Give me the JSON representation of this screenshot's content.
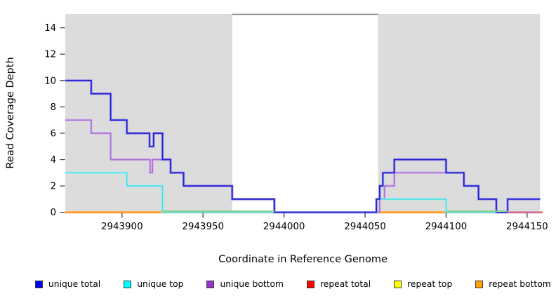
{
  "figure": {
    "xlabel": "Coordinate in Reference Genome",
    "ylabel": "Read Coverage Depth"
  },
  "chart_data": {
    "type": "line",
    "subtype": "step-after coverage depth plot",
    "title": "",
    "xlabel": "Coordinate in Reference Genome",
    "ylabel": "Read Coverage Depth",
    "xlim": [
      2943865,
      2944158
    ],
    "ylim": [
      0,
      15
    ],
    "x_ticks": [
      "2943900",
      "2943950",
      "2944000",
      "2944050",
      "2944100",
      "2944150"
    ],
    "x_tick_values": [
      2943900,
      2943950,
      2944000,
      2944050,
      2944100,
      2944150
    ],
    "y_ticks": [
      "0",
      "2",
      "4",
      "6",
      "8",
      "10",
      "12",
      "14"
    ],
    "y_tick_values": [
      0,
      2,
      4,
      6,
      8,
      10,
      12,
      14
    ],
    "grid": false,
    "legend_position": "bottom",
    "background_regions": [
      {
        "name": "repeat-shading-left",
        "x0": 2943865,
        "x1": 2943968,
        "color": "#dcdcdc"
      },
      {
        "name": "repeat-shading-right",
        "x0": 2944058,
        "x1": 2944158,
        "color": "#dcdcdc"
      }
    ],
    "gap_top_line": {
      "x0": 2943968,
      "x1": 2944058,
      "y": 15.02,
      "color": "#8c8c8c"
    },
    "series": [
      {
        "name": "repeat total",
        "legend_color": "#ff0000",
        "halo": "#e03030",
        "core": "#e03030",
        "render": "single",
        "width": 2,
        "points": [
          [
            2943865,
            0
          ],
          [
            2944159.5,
            0
          ]
        ]
      },
      {
        "name": "repeat top",
        "legend_color": "#ffff00",
        "halo": "#f0f046",
        "core": "#f0f046",
        "render": "single",
        "width": 2,
        "points": [
          [
            2943865,
            0
          ],
          [
            2944159.5,
            0
          ]
        ]
      },
      {
        "name": "repeat bottom",
        "legend_color": "#ffa500",
        "halo": "#ffb25c",
        "core": "#ff9420",
        "render": "halo",
        "width": 2,
        "points": [
          [
            2943865,
            0
          ],
          [
            2944159.5,
            0
          ]
        ]
      },
      {
        "name": "unique bottom",
        "legend_color": "#9932cc",
        "halo": "#d7b5ea",
        "core": "#a873d6",
        "render": "halo",
        "width": 2,
        "points": [
          [
            2943865,
            7
          ],
          [
            2943881,
            6
          ],
          [
            2943893,
            4
          ],
          [
            2943917.3,
            3
          ],
          [
            2943918.8,
            4
          ],
          [
            2943930,
            3
          ],
          [
            2943938,
            2
          ],
          [
            2943968,
            1
          ],
          [
            2943994,
            0
          ],
          [
            2944059,
            1
          ],
          [
            2944062,
            2
          ],
          [
            2944068,
            3
          ],
          [
            2944100,
            3
          ],
          [
            2944111,
            2
          ],
          [
            2944120,
            1
          ],
          [
            2944131,
            0
          ],
          [
            2944158,
            0
          ]
        ]
      },
      {
        "name": "unique top",
        "legend_color": "#00ffff",
        "halo": "#b2f3f3",
        "core": "#45dde2",
        "render": "halo",
        "width": 2,
        "points": [
          [
            2943865,
            3
          ],
          [
            2943903,
            2
          ],
          [
            2943925,
            0
          ],
          [
            2944057,
            1
          ],
          [
            2944100,
            0
          ],
          [
            2944138,
            1
          ],
          [
            2944158,
            1
          ]
        ]
      },
      {
        "name": "unique total",
        "legend_color": "#0000ff",
        "halo": "#908dea",
        "core": "#2320cf",
        "render": "halo",
        "width": 2,
        "points": [
          [
            2943865,
            10
          ],
          [
            2943881,
            9
          ],
          [
            2943893,
            7
          ],
          [
            2943903,
            6
          ],
          [
            2943917,
            5
          ],
          [
            2943919.5,
            6
          ],
          [
            2943925,
            4
          ],
          [
            2943930,
            3
          ],
          [
            2943938,
            2
          ],
          [
            2943968,
            1
          ],
          [
            2943994,
            0
          ],
          [
            2944057,
            1
          ],
          [
            2944059,
            2
          ],
          [
            2944061,
            3
          ],
          [
            2944068,
            4
          ],
          [
            2944100,
            3
          ],
          [
            2944111,
            2
          ],
          [
            2944120,
            1
          ],
          [
            2944131,
            0
          ],
          [
            2944138,
            1
          ],
          [
            2944158,
            1
          ]
        ]
      }
    ],
    "overlay_blend_segments": [
      {
        "name": "blend-cyan-yellow-left",
        "x0": 2943925,
        "x1": 2943994,
        "y": 0,
        "color": "#8fce90",
        "dy": -1.6
      },
      {
        "name": "blend-cyan-yellow-right",
        "x0": 2944100,
        "x1": 2944138,
        "y": 0,
        "color": "#8fce90",
        "dy": -1.6
      },
      {
        "name": "blend-red-right-end",
        "x0": 2944138,
        "x1": 2944159.5,
        "y": 0,
        "color": "#d9647e",
        "dy": 0
      }
    ]
  },
  "legend": {
    "items": [
      {
        "label": "unique total",
        "color": "#0000ff"
      },
      {
        "label": "unique top",
        "color": "#00ffff"
      },
      {
        "label": "unique bottom",
        "color": "#9932cc"
      },
      {
        "label": "repeat total",
        "color": "#ff0000"
      },
      {
        "label": "repeat top",
        "color": "#ffff00"
      },
      {
        "label": "repeat bottom",
        "color": "#ffa500"
      }
    ]
  }
}
